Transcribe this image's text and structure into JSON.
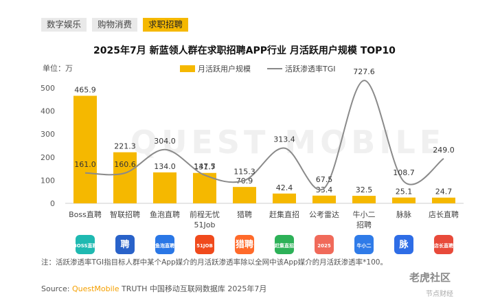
{
  "tabs": [
    "数字娱乐",
    "购物消费",
    "求职招聘"
  ],
  "active_tab": 2,
  "chart_data": {
    "type": "bar",
    "title": "2025年7月 新蓝领人群在求职招聘APP行业 月活跃用户规模 TOP10",
    "unit_label": "单位：万",
    "categories": [
      "Boss直聘",
      "智联招聘",
      "鱼泡直聘",
      "前程无忧51Job",
      "猎聘",
      "赶集直招",
      "公考雷达",
      "牛小二招聘",
      "脉脉",
      "店长直聘"
    ],
    "category_lines": [
      [
        "Boss直聘"
      ],
      [
        "智联招聘"
      ],
      [
        "鱼泡直聘"
      ],
      [
        "前程无忧",
        "51Job"
      ],
      [
        "猎聘"
      ],
      [
        "赶集直招"
      ],
      [
        "公考雷达"
      ],
      [
        "牛小二",
        "招聘"
      ],
      [
        "脉脉"
      ],
      [
        "店长直聘"
      ]
    ],
    "series": [
      {
        "name": "月活跃用户规模",
        "type": "bar",
        "color": "#f5b800",
        "values": [
          465.9,
          221.3,
          134.0,
          131.7,
          70.9,
          42.4,
          33.4,
          32.5,
          25.1,
          24.7
        ]
      },
      {
        "name": "活跃渗透率TGI",
        "type": "line",
        "color": "#8a8a8a",
        "values": [
          161.0,
          160.6,
          304.0,
          147.5,
          115.3,
          313.4,
          67.5,
          727.6,
          108.7,
          249.0
        ]
      }
    ],
    "yticks": [
      0,
      100,
      200,
      300,
      400,
      500
    ],
    "ylim": [
      0,
      500
    ],
    "grid": false,
    "legend": "top-center"
  },
  "app_icons": [
    {
      "label": "BOSS直聘",
      "bg": "#1fb9b1"
    },
    {
      "label": "聘",
      "bg": "#2962c9"
    },
    {
      "label": "鱼泡直聘",
      "bg": "#2a77e6"
    },
    {
      "label": "51JOB",
      "bg": "#f04a1c"
    },
    {
      "label": "猎聘",
      "bg": "#ff6a2a"
    },
    {
      "label": "赶集直招",
      "bg": "#2db158"
    },
    {
      "label": "2025",
      "bg": "#f06a5a"
    },
    {
      "label": "牛小二",
      "bg": "#2f7be8"
    },
    {
      "label": "脉",
      "bg": "#2e6de6"
    },
    {
      "label": "店长直聘",
      "bg": "#e84a3a"
    }
  ],
  "note": "注：活跃渗透率TGI指目标人群中某个App媒介的月活跃渗透率除以全网中该App媒介的月活跃渗透率*100。",
  "source_prefix": "Source: ",
  "source_brand": "QuestMobile",
  "source_rest": " TRUTH 中国移动互联网数据库 2025年7月",
  "watermark": "QUEST MOBILE",
  "corner_mark": "老虎社区",
  "corner_sub": "节点财经"
}
